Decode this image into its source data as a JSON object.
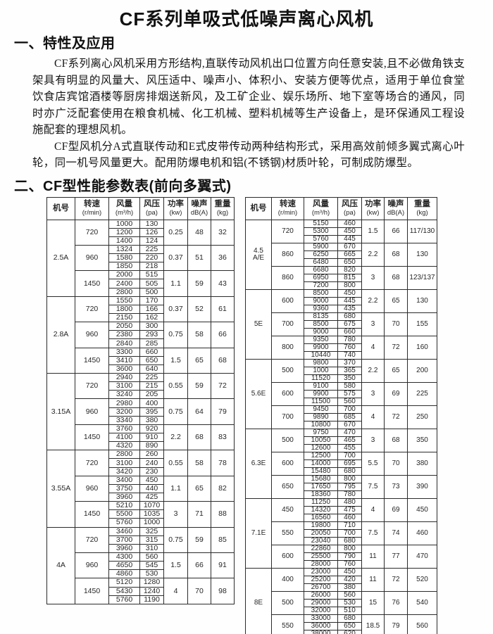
{
  "page": {
    "title": "CF系列单吸式低噪声离心风机",
    "section1": {
      "heading": "一、特性及应用",
      "paragraphs": [
        "CF系列离心风机采用方形结构,直联传动风机出口位置方向任意安装,且不必做角铁支架具有明显的风量大、风压适中、噪声小、体积小、安装方便等优点，适用于单位食堂饮食店宾馆酒楼等厨房排烟送新风，及工矿企业、娱乐场所、地下室等场合的通风，同时亦广泛配套使用在粮食机械、化工机械、塑料机械等生产设备上，是环保通风工程设施配套的理想风机。",
        "CF型风机分A式直联传动和E式皮带传动两种结构形式，采用高效前倾多翼式离心叶轮，同一机号风量更大。配用防爆电机和铝(不锈钢)材质叶轮，可制成防爆型。"
      ]
    },
    "section2": {
      "heading": "二、CF型性能参数表(前向多翼式)"
    }
  },
  "colors": {
    "background": "#fefefe",
    "text": "#1c1c1c",
    "table_border": "#2b2b2b"
  },
  "table_headers": {
    "cols": [
      {
        "main": "机号",
        "unit": ""
      },
      {
        "main": "转速",
        "unit": "(r/min)"
      },
      {
        "main": "风量",
        "unit": "(m³/h)"
      },
      {
        "main": "风压",
        "unit": "(pa)"
      },
      {
        "main": "功率",
        "unit": "(kw)"
      },
      {
        "main": "噪声",
        "unit": "dB(A)"
      },
      {
        "main": "重量",
        "unit": "(kg)"
      }
    ]
  },
  "tables": [
    {
      "id": "left",
      "groups": [
        {
          "model": "2.5A",
          "subgroups": [
            {
              "speed": "720",
              "rows": [
                [
                  "1000",
                  "130"
                ],
                [
                  "1200",
                  "126"
                ],
                [
                  "1400",
                  "124"
                ]
              ],
              "power": "0.25",
              "noise": "48",
              "weight": "32"
            },
            {
              "speed": "960",
              "rows": [
                [
                  "1324",
                  "225"
                ],
                [
                  "1580",
                  "220"
                ],
                [
                  "1850",
                  "218"
                ]
              ],
              "power": "0.37",
              "noise": "51",
              "weight": "36"
            },
            {
              "speed": "1450",
              "rows": [
                [
                  "2000",
                  "515"
                ],
                [
                  "2400",
                  "505"
                ],
                [
                  "2800",
                  "500"
                ]
              ],
              "power": "1.1",
              "noise": "59",
              "weight": "43"
            }
          ]
        },
        {
          "model": "2.8A",
          "subgroups": [
            {
              "speed": "720",
              "rows": [
                [
                  "1550",
                  "170"
                ],
                [
                  "1800",
                  "166"
                ],
                [
                  "2150",
                  "162"
                ]
              ],
              "power": "0.37",
              "noise": "52",
              "weight": "61"
            },
            {
              "speed": "960",
              "rows": [
                [
                  "2050",
                  "300"
                ],
                [
                  "2380",
                  "293"
                ],
                [
                  "2840",
                  "285"
                ]
              ],
              "power": "0.75",
              "noise": "58",
              "weight": "66"
            },
            {
              "speed": "1450",
              "rows": [
                [
                  "3300",
                  "660"
                ],
                [
                  "3410",
                  "650"
                ],
                [
                  "3600",
                  "640"
                ]
              ],
              "power": "1.5",
              "noise": "65",
              "weight": "68"
            }
          ]
        },
        {
          "model": "3.15A",
          "subgroups": [
            {
              "speed": "720",
              "rows": [
                [
                  "2940",
                  "225"
                ],
                [
                  "3100",
                  "215"
                ],
                [
                  "3240",
                  "205"
                ]
              ],
              "power": "0.55",
              "noise": "59",
              "weight": "72"
            },
            {
              "speed": "960",
              "rows": [
                [
                  "2980",
                  "400"
                ],
                [
                  "3200",
                  "395"
                ],
                [
                  "3340",
                  "380"
                ]
              ],
              "power": "0.75",
              "noise": "64",
              "weight": "79"
            },
            {
              "speed": "1450",
              "rows": [
                [
                  "3760",
                  "920"
                ],
                [
                  "4100",
                  "910"
                ],
                [
                  "4320",
                  "890"
                ]
              ],
              "power": "2.2",
              "noise": "68",
              "weight": "83"
            }
          ]
        },
        {
          "model": "3.55A",
          "subgroups": [
            {
              "speed": "720",
              "rows": [
                [
                  "2800",
                  "260"
                ],
                [
                  "3100",
                  "240"
                ],
                [
                  "3420",
                  "230"
                ]
              ],
              "power": "0.55",
              "noise": "58",
              "weight": "78"
            },
            {
              "speed": "960",
              "rows": [
                [
                  "3400",
                  "450"
                ],
                [
                  "3750",
                  "440"
                ],
                [
                  "3960",
                  "425"
                ]
              ],
              "power": "1.1",
              "noise": "65",
              "weight": "82"
            },
            {
              "speed": "1450",
              "rows": [
                [
                  "5210",
                  "1070"
                ],
                [
                  "5500",
                  "1035"
                ],
                [
                  "5760",
                  "1000"
                ]
              ],
              "power": "3",
              "noise": "71",
              "weight": "88"
            }
          ]
        },
        {
          "model": "4A",
          "subgroups": [
            {
              "speed": "720",
              "rows": [
                [
                  "3460",
                  "325"
                ],
                [
                  "3700",
                  "315"
                ],
                [
                  "3960",
                  "310"
                ]
              ],
              "power": "0.75",
              "noise": "59",
              "weight": "85"
            },
            {
              "speed": "960",
              "rows": [
                [
                  "4300",
                  "560"
                ],
                [
                  "4650",
                  "545"
                ],
                [
                  "4860",
                  "530"
                ]
              ],
              "power": "1.5",
              "noise": "66",
              "weight": "91"
            },
            {
              "speed": "1450",
              "rows": [
                [
                  "5120",
                  "1280"
                ],
                [
                  "5430",
                  "1240"
                ],
                [
                  "5760",
                  "1190"
                ]
              ],
              "power": "4",
              "noise": "70",
              "weight": "98"
            }
          ]
        }
      ]
    },
    {
      "id": "right",
      "groups": [
        {
          "model": "4.5\nA/E",
          "subgroups": [
            {
              "speed": "720",
              "rows": [
                [
                  "5150",
                  "460"
                ],
                [
                  "5300",
                  "450"
                ],
                [
                  "5760",
                  "445"
                ]
              ],
              "power": "1.5",
              "noise": "66",
              "weight": "117/130"
            },
            {
              "speed": "860",
              "rows": [
                [
                  "5900",
                  "670"
                ],
                [
                  "6250",
                  "665"
                ],
                [
                  "6480",
                  "650"
                ]
              ],
              "power": "2.2",
              "noise": "68",
              "weight": "130"
            },
            {
              "speed": "860",
              "rows": [
                [
                  "6680",
                  "820"
                ],
                [
                  "6950",
                  "815"
                ],
                [
                  "7200",
                  "800"
                ]
              ],
              "power": "3",
              "noise": "68",
              "weight": "123/137"
            }
          ]
        },
        {
          "model": "5E",
          "subgroups": [
            {
              "speed": "600",
              "rows": [
                [
                  "8500",
                  "450"
                ],
                [
                  "9000",
                  "445"
                ],
                [
                  "9360",
                  "435"
                ]
              ],
              "power": "2.2",
              "noise": "65",
              "weight": "130"
            },
            {
              "speed": "700",
              "rows": [
                [
                  "8135",
                  "680"
                ],
                [
                  "8500",
                  "675"
                ],
                [
                  "9000",
                  "660"
                ]
              ],
              "power": "3",
              "noise": "70",
              "weight": "155"
            },
            {
              "speed": "800",
              "rows": [
                [
                  "9350",
                  "780"
                ],
                [
                  "9900",
                  "760"
                ],
                [
                  "10440",
                  "740"
                ]
              ],
              "power": "4",
              "noise": "72",
              "weight": "160"
            }
          ]
        },
        {
          "model": "5.6E",
          "subgroups": [
            {
              "speed": "500",
              "rows": [
                [
                  "9800",
                  "370"
                ],
                [
                  "1000",
                  "365"
                ],
                [
                  "11520",
                  "350"
                ]
              ],
              "power": "2.2",
              "noise": "65",
              "weight": "200"
            },
            {
              "speed": "600",
              "rows": [
                [
                  "9100",
                  "580"
                ],
                [
                  "9900",
                  "575"
                ],
                [
                  "11500",
                  "560"
                ]
              ],
              "power": "3",
              "noise": "69",
              "weight": "225"
            },
            {
              "speed": "700",
              "rows": [
                [
                  "9450",
                  "700"
                ],
                [
                  "9890",
                  "685"
                ],
                [
                  "10800",
                  "670"
                ]
              ],
              "power": "4",
              "noise": "72",
              "weight": "250"
            }
          ]
        },
        {
          "model": "6.3E",
          "subgroups": [
            {
              "speed": "500",
              "rows": [
                [
                  "9750",
                  "470"
                ],
                [
                  "10050",
                  "465"
                ],
                [
                  "12600",
                  "455"
                ]
              ],
              "power": "3",
              "noise": "68",
              "weight": "350"
            },
            {
              "speed": "600",
              "rows": [
                [
                  "12500",
                  "700"
                ],
                [
                  "14000",
                  "695"
                ],
                [
                  "15480",
                  "680"
                ]
              ],
              "power": "5.5",
              "noise": "70",
              "weight": "380"
            },
            {
              "speed": "650",
              "rows": [
                [
                  "15680",
                  "800"
                ],
                [
                  "17650",
                  "795"
                ],
                [
                  "18360",
                  "780"
                ]
              ],
              "power": "7.5",
              "noise": "73",
              "weight": "390"
            }
          ]
        },
        {
          "model": "7.1E",
          "subgroups": [
            {
              "speed": "450",
              "rows": [
                [
                  "11250",
                  "480"
                ],
                [
                  "14320",
                  "475"
                ],
                [
                  "16560",
                  "460"
                ]
              ],
              "power": "4",
              "noise": "69",
              "weight": "450"
            },
            {
              "speed": "550",
              "rows": [
                [
                  "19800",
                  "710"
                ],
                [
                  "20050",
                  "700"
                ],
                [
                  "23040",
                  "680"
                ]
              ],
              "power": "7.5",
              "noise": "74",
              "weight": "460"
            },
            {
              "speed": "600",
              "rows": [
                [
                  "22860",
                  "800"
                ],
                [
                  "25500",
                  "790"
                ],
                [
                  "28000",
                  "760"
                ]
              ],
              "power": "11",
              "noise": "77",
              "weight": "470"
            }
          ]
        },
        {
          "model": "8E",
          "subgroups": [
            {
              "speed": "400",
              "rows": [
                [
                  "23000",
                  "450"
                ],
                [
                  "25200",
                  "420"
                ],
                [
                  "26700",
                  "380"
                ]
              ],
              "power": "11",
              "noise": "72",
              "weight": "520"
            },
            {
              "speed": "500",
              "rows": [
                [
                  "26000",
                  "560"
                ],
                [
                  "29000",
                  "530"
                ],
                [
                  "32000",
                  "510"
                ]
              ],
              "power": "15",
              "noise": "76",
              "weight": "540"
            },
            {
              "speed": "550",
              "rows": [
                [
                  "33000",
                  "680"
                ],
                [
                  "36000",
                  "650"
                ],
                [
                  "38000",
                  "620"
                ]
              ],
              "power": "18.5",
              "noise": "79",
              "weight": "560"
            }
          ]
        }
      ]
    }
  ]
}
